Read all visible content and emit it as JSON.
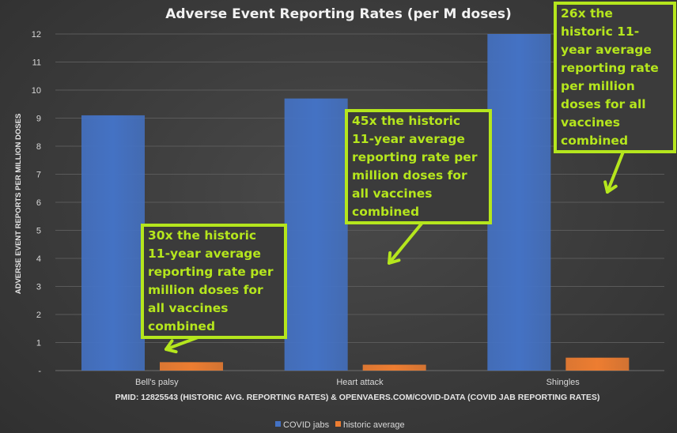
{
  "chart_data": {
    "type": "bar",
    "title": "Adverse Event Reporting Rates (per M doses)",
    "ylabel": "ADVERSE EVENT REPORTS PER MILLION DOSES",
    "xlabel": "PMID: 12825543 (HISTORIC AVG. REPORTING RATES) & OPENVAERS.COM/COVID-DATA (COVID JAB REPORTING RATES)",
    "categories": [
      "Bell's palsy",
      "Heart attack",
      "Shingles"
    ],
    "series": [
      {
        "name": "COVID jabs",
        "values": [
          9.1,
          9.7,
          12.0
        ],
        "color": "#4472c4"
      },
      {
        "name": "historic average",
        "values": [
          0.3,
          0.21,
          0.46
        ],
        "color": "#ed7d31"
      }
    ],
    "ylim": [
      0,
      12
    ],
    "yticks": [
      "-",
      "1",
      "2",
      "3",
      "4",
      "5",
      "6",
      "7",
      "8",
      "9",
      "10",
      "11",
      "12"
    ],
    "grid": true,
    "legend": "bottom"
  },
  "annotations": [
    {
      "text": "30x the historic 11-year average reporting rate per million doses for all vaccines combined"
    },
    {
      "text": "45x the historic 11-year average reporting rate per million doses for all vaccines combined"
    },
    {
      "text": "26x the historic 11-year average reporting rate per million doses for all vaccines combined"
    }
  ],
  "colors": {
    "annotation": "#b5e61d",
    "background": "#404040"
  }
}
